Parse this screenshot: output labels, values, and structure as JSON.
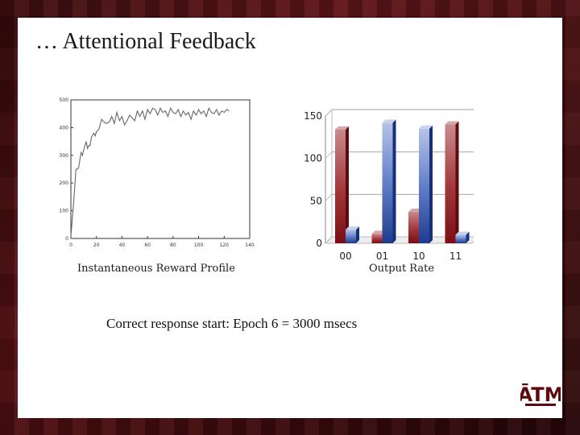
{
  "slide": {
    "title": "… Attentional Feedback",
    "caption_left": "Instantaneous Reward Profile",
    "caption_right": "Output Rate",
    "bottom_text": "Correct response start: Epoch 6 = 3000 msecs",
    "logo_text": "ATM"
  },
  "chart_data": [
    {
      "type": "line",
      "title": "",
      "xlabel": "",
      "ylabel": "",
      "xlim": [
        0,
        140
      ],
      "ylim": [
        0,
        500
      ],
      "xticks": [
        0,
        20,
        40,
        60,
        80,
        100,
        120,
        140
      ],
      "yticks": [
        0,
        100,
        200,
        300,
        400,
        500
      ],
      "grid": false,
      "color": "#666666",
      "series": [
        {
          "x": [
            0,
            2,
            4,
            5,
            6,
            8,
            9,
            10,
            12,
            13,
            14,
            15,
            16,
            18,
            19,
            20,
            22,
            24,
            26,
            28,
            30,
            32,
            34,
            36,
            38,
            40,
            42,
            44,
            46,
            48,
            50,
            52,
            54,
            56,
            58,
            60,
            62,
            64,
            66,
            68,
            70,
            72,
            74,
            76,
            78,
            80,
            82,
            84,
            86,
            88,
            90,
            92,
            94,
            96,
            98,
            100,
            102,
            104,
            106,
            108,
            110,
            112,
            114,
            116,
            118,
            120,
            122,
            124
          ],
          "y": [
            10,
            120,
            250,
            250,
            255,
            310,
            300,
            320,
            350,
            325,
            335,
            335,
            365,
            380,
            370,
            385,
            395,
            430,
            420,
            415,
            420,
            440,
            415,
            455,
            425,
            440,
            410,
            425,
            445,
            435,
            425,
            460,
            440,
            460,
            430,
            465,
            450,
            470,
            465,
            445,
            470,
            455,
            460,
            440,
            470,
            455,
            450,
            465,
            440,
            460,
            445,
            455,
            430,
            460,
            445,
            465,
            450,
            460,
            440,
            470,
            455,
            450,
            465,
            445,
            460,
            455,
            465,
            460
          ]
        }
      ]
    },
    {
      "type": "bar",
      "title": "",
      "xlabel": "Output Rate",
      "ylabel": "",
      "ylim": [
        0,
        150
      ],
      "yticks": [
        0,
        50,
        100,
        150
      ],
      "categories": [
        "00",
        "01",
        "10",
        "11"
      ],
      "grid": true,
      "series": [
        {
          "color": "#8e1c22",
          "values": [
            134,
            11,
            37,
            140
          ]
        },
        {
          "color": "#2a4a9a",
          "values": [
            16,
            142,
            135,
            10
          ]
        }
      ]
    }
  ]
}
